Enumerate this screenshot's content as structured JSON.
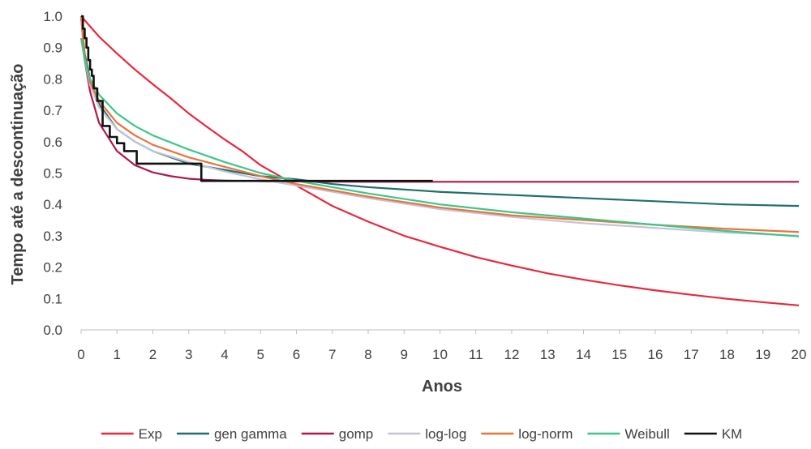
{
  "chart_data": {
    "type": "line",
    "title": "",
    "xlabel": "Anos",
    "ylabel": "Tempo até a descontinuação",
    "xlim": [
      0,
      20
    ],
    "ylim": [
      0,
      1.0
    ],
    "x_ticks": [
      "0",
      "1",
      "2",
      "3",
      "4",
      "5",
      "6",
      "7",
      "8",
      "9",
      "10",
      "11",
      "12",
      "13",
      "14",
      "15",
      "16",
      "17",
      "18",
      "19",
      "20"
    ],
    "y_ticks": [
      "0.0",
      "0.1",
      "0.2",
      "0.3",
      "0.4",
      "0.5",
      "0.6",
      "0.7",
      "0.8",
      "0.9",
      "1.0"
    ],
    "grid": false,
    "legend_position": "bottom",
    "series": [
      {
        "name": "Exp",
        "color": "#e8283c",
        "kind": "curve",
        "x": [
          0,
          0.5,
          1,
          1.5,
          2,
          2.5,
          3,
          3.5,
          4,
          4.5,
          5,
          6,
          7,
          8,
          9,
          10,
          11,
          12,
          13,
          14,
          15,
          16,
          17,
          18,
          19,
          20
        ],
        "y": [
          1.0,
          0.935,
          0.881,
          0.83,
          0.783,
          0.738,
          0.69,
          0.648,
          0.607,
          0.569,
          0.525,
          0.46,
          0.395,
          0.345,
          0.3,
          0.265,
          0.232,
          0.205,
          0.18,
          0.16,
          0.142,
          0.126,
          0.112,
          0.099,
          0.088,
          0.078
        ]
      },
      {
        "name": "gen gamma",
        "color": "#1f6f6b",
        "kind": "curve",
        "x": [
          0,
          0.1,
          0.25,
          0.5,
          1,
          1.5,
          2,
          3,
          4,
          5,
          6,
          7,
          8,
          10,
          12,
          14,
          16,
          18,
          20
        ],
        "y": [
          1.0,
          0.88,
          0.8,
          0.72,
          0.64,
          0.6,
          0.57,
          0.53,
          0.51,
          0.49,
          0.48,
          0.465,
          0.455,
          0.44,
          0.43,
          0.42,
          0.41,
          0.4,
          0.395
        ]
      },
      {
        "name": "gomp",
        "color": "#b0184a",
        "kind": "curve",
        "x": [
          0,
          0.1,
          0.25,
          0.5,
          1,
          1.5,
          2,
          2.5,
          3,
          3.5,
          4,
          5,
          6,
          8,
          10,
          12,
          14,
          16,
          18,
          20
        ],
        "y": [
          1.0,
          0.86,
          0.76,
          0.66,
          0.57,
          0.525,
          0.502,
          0.49,
          0.482,
          0.478,
          0.476,
          0.474,
          0.473,
          0.472,
          0.472,
          0.472,
          0.472,
          0.472,
          0.472,
          0.472
        ]
      },
      {
        "name": "log-log",
        "color": "#c4c4d8",
        "kind": "curve",
        "x": [
          0,
          0.1,
          0.25,
          0.5,
          1,
          1.5,
          2,
          3,
          4,
          5,
          6,
          7,
          8,
          10,
          12,
          14,
          16,
          18,
          20
        ],
        "y": [
          1.0,
          0.86,
          0.78,
          0.71,
          0.64,
          0.6,
          0.57,
          0.535,
          0.505,
          0.48,
          0.46,
          0.44,
          0.42,
          0.385,
          0.36,
          0.34,
          0.325,
          0.31,
          0.3
        ]
      },
      {
        "name": "log-norm",
        "color": "#e8743c",
        "kind": "curve",
        "x": [
          0,
          0.1,
          0.25,
          0.5,
          1,
          1.5,
          2,
          3,
          4,
          5,
          6,
          7,
          8,
          10,
          12,
          14,
          16,
          18,
          20
        ],
        "y": [
          1.0,
          0.87,
          0.79,
          0.73,
          0.66,
          0.62,
          0.59,
          0.55,
          0.52,
          0.49,
          0.465,
          0.445,
          0.425,
          0.39,
          0.365,
          0.35,
          0.335,
          0.322,
          0.312
        ]
      },
      {
        "name": "Weibull",
        "color": "#3cc68c",
        "kind": "curve",
        "x": [
          0,
          0.1,
          0.25,
          0.5,
          1,
          1.5,
          2,
          3,
          4,
          5,
          6,
          7,
          8,
          10,
          12,
          14,
          16,
          18,
          20
        ],
        "y": [
          0.93,
          0.86,
          0.8,
          0.75,
          0.69,
          0.65,
          0.62,
          0.575,
          0.535,
          0.5,
          0.475,
          0.455,
          0.435,
          0.4,
          0.375,
          0.355,
          0.335,
          0.315,
          0.298
        ]
      },
      {
        "name": "KM",
        "color": "#111111",
        "kind": "step",
        "x": [
          0,
          0.05,
          0.1,
          0.15,
          0.2,
          0.25,
          0.3,
          0.35,
          0.45,
          0.6,
          0.8,
          1.0,
          1.2,
          1.55,
          3.35,
          9.8
        ],
        "y": [
          1.0,
          0.96,
          0.93,
          0.9,
          0.86,
          0.83,
          0.81,
          0.77,
          0.73,
          0.65,
          0.615,
          0.595,
          0.57,
          0.53,
          0.475,
          0.475
        ]
      }
    ]
  }
}
